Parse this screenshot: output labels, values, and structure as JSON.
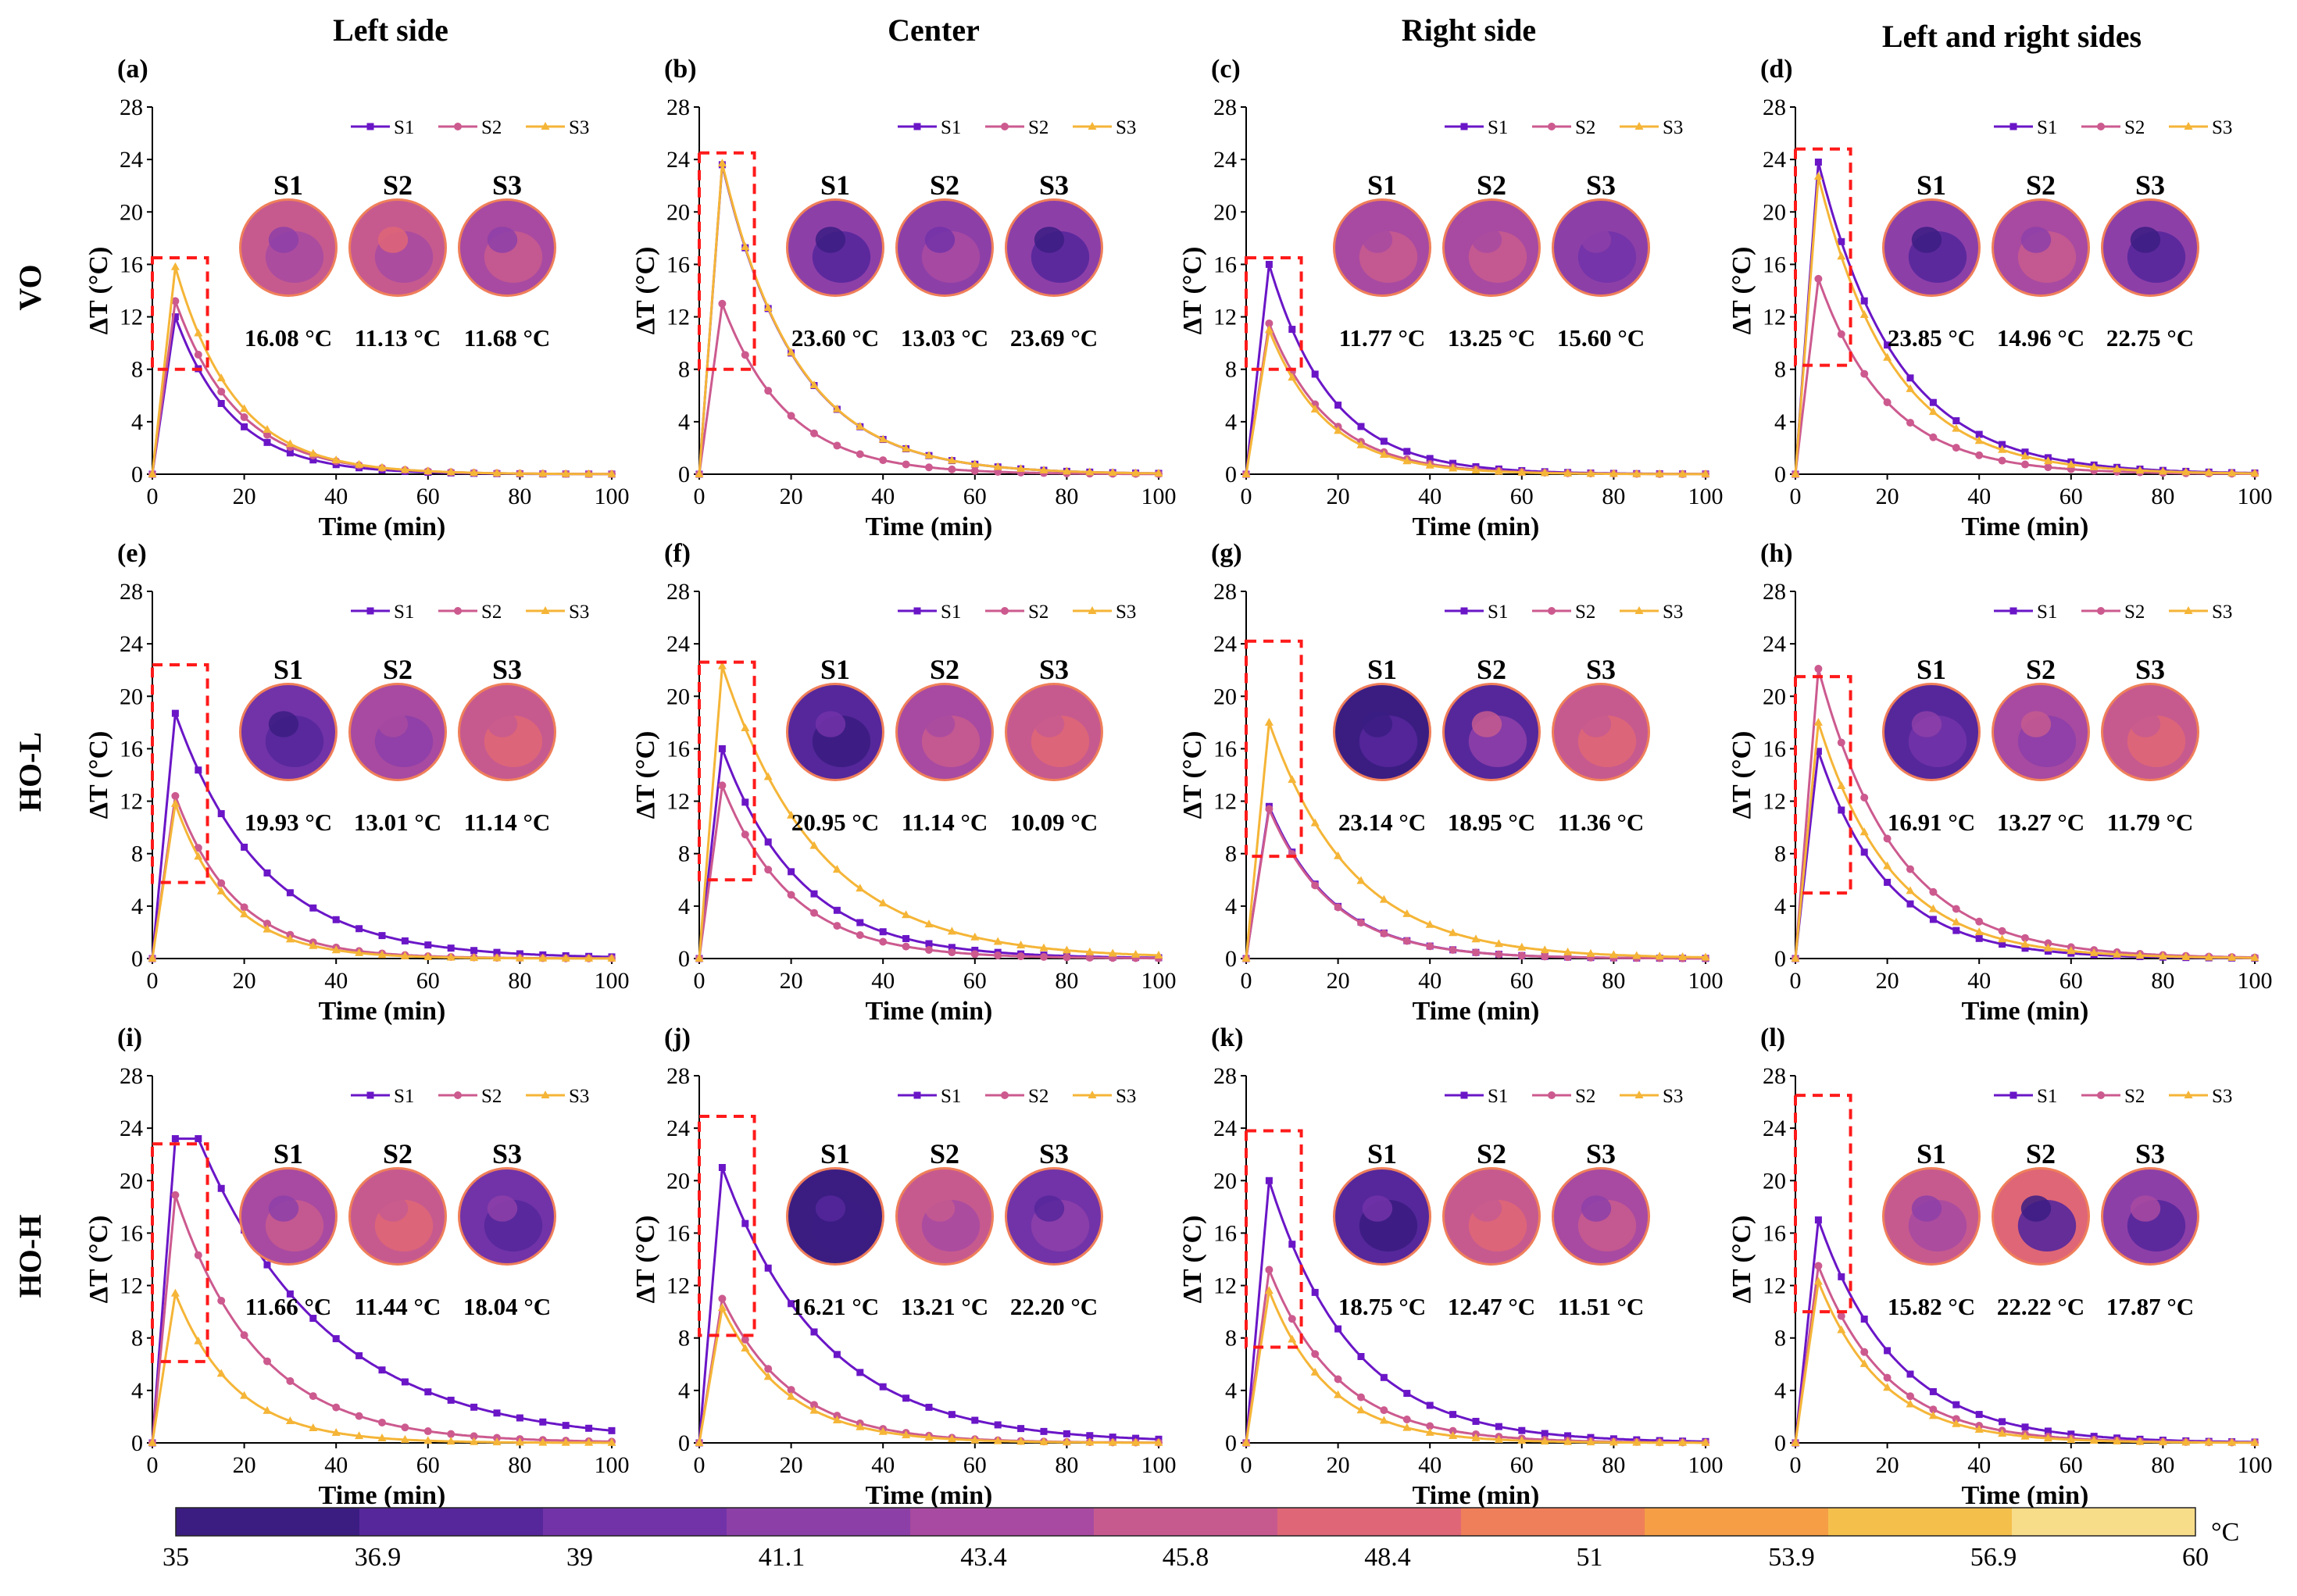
{
  "figure": {
    "column_titles": [
      "Left side",
      "Center",
      "Right side",
      "Left and right sides"
    ],
    "row_labels": [
      "VO",
      "HO-L",
      "HO-H"
    ],
    "legend": [
      "S1",
      "S2",
      "S3"
    ],
    "sample_labels": [
      "S1",
      "S2",
      "S3"
    ],
    "colors": {
      "S1": "#6a16c7",
      "S2": "#cc5a8f",
      "S3": "#f5b537",
      "highlight_box": "#ff1a1a"
    },
    "colorbar": {
      "ticks": [
        "35",
        "36.9",
        "39",
        "41.1",
        "43.4",
        "45.8",
        "48.4",
        "51",
        "53.9",
        "56.9",
        "60"
      ],
      "unit": "°C",
      "colors": [
        "#3b1d82",
        "#56279b",
        "#7233a8",
        "#8d3fa8",
        "#a84aa1",
        "#c65a8f",
        "#df6677",
        "#ef7f5a",
        "#f59e45",
        "#f5bf4c",
        "#f7dc8a"
      ]
    }
  },
  "chart_data": [
    {
      "id": "a",
      "type": "line",
      "title": "(a)",
      "xlabel": "Time (min)",
      "ylabel": "ΔT (°C)",
      "xlim": [
        0,
        100
      ],
      "ylim": [
        0,
        28
      ],
      "xticks": [
        "0",
        "20",
        "40",
        "60",
        "80",
        "100"
      ],
      "yticks": [
        "0",
        "4",
        "8",
        "12",
        "16",
        "20",
        "24",
        "28"
      ],
      "box": [
        8,
        16.5
      ],
      "series": [
        {
          "name": "S1",
          "peak": 12,
          "peak_at": 5,
          "tau": 12.5
        },
        {
          "name": "S2",
          "peak": 13.2,
          "peak_at": 5,
          "tau": 13.5
        },
        {
          "name": "S3",
          "peak": 15.8,
          "peak_at": 5,
          "tau": 13
        }
      ],
      "thermal_temps": [
        "16.08 °C",
        "11.13 °C",
        "11.68 °C"
      ],
      "thermal_levels": [
        [
          5,
          4,
          3
        ],
        [
          5,
          4,
          6
        ],
        [
          4,
          5,
          3
        ]
      ]
    },
    {
      "id": "b",
      "type": "line",
      "title": "(b)",
      "xlabel": "Time (min)",
      "ylabel": "ΔT (°C)",
      "xlim": [
        0,
        100
      ],
      "ylim": [
        0,
        28
      ],
      "xticks": [
        "0",
        "20",
        "40",
        "60",
        "80",
        "100"
      ],
      "yticks": [
        "0",
        "4",
        "8",
        "12",
        "16",
        "20",
        "24",
        "28"
      ],
      "box": [
        8,
        24.5
      ],
      "series": [
        {
          "name": "S1",
          "peak": 23.6,
          "peak_at": 5,
          "tau": 16
        },
        {
          "name": "S2",
          "peak": 13,
          "peak_at": 5,
          "tau": 14
        },
        {
          "name": "S3",
          "peak": 23.7,
          "peak_at": 5,
          "tau": 16
        }
      ],
      "thermal_temps": [
        "23.60 °C",
        "13.03 °C",
        "23.69 °C"
      ],
      "thermal_levels": [
        [
          3,
          1,
          0
        ],
        [
          3,
          4,
          2
        ],
        [
          3,
          1,
          0
        ]
      ]
    },
    {
      "id": "c",
      "type": "line",
      "title": "(c)",
      "xlabel": "Time (min)",
      "ylabel": "ΔT (°C)",
      "xlim": [
        0,
        100
      ],
      "ylim": [
        0,
        28
      ],
      "xticks": [
        "0",
        "20",
        "40",
        "60",
        "80",
        "100"
      ],
      "yticks": [
        "0",
        "4",
        "8",
        "12",
        "16",
        "20",
        "24",
        "28"
      ],
      "box": [
        8,
        16.5
      ],
      "series": [
        {
          "name": "S1",
          "peak": 16,
          "peak_at": 5,
          "tau": 13.5
        },
        {
          "name": "S2",
          "peak": 11.5,
          "peak_at": 5,
          "tau": 13
        },
        {
          "name": "S3",
          "peak": 11,
          "peak_at": 5,
          "tau": 12.5
        }
      ],
      "thermal_temps": [
        "11.77 °C",
        "13.25 °C",
        "15.60 °C"
      ],
      "thermal_levels": [
        [
          4,
          5,
          4
        ],
        [
          4,
          5,
          4
        ],
        [
          3,
          2,
          3
        ]
      ]
    },
    {
      "id": "d",
      "type": "line",
      "title": "(d)",
      "xlabel": "Time (min)",
      "ylabel": "ΔT (°C)",
      "xlim": [
        0,
        100
      ],
      "ylim": [
        0,
        28
      ],
      "xticks": [
        "0",
        "20",
        "40",
        "60",
        "80",
        "100"
      ],
      "yticks": [
        "0",
        "4",
        "8",
        "12",
        "16",
        "20",
        "24",
        "28"
      ],
      "box": [
        8.3,
        24.8
      ],
      "series": [
        {
          "name": "S1",
          "peak": 23.8,
          "peak_at": 5,
          "tau": 17
        },
        {
          "name": "S2",
          "peak": 14.9,
          "peak_at": 5,
          "tau": 15
        },
        {
          "name": "S3",
          "peak": 22.7,
          "peak_at": 5,
          "tau": 16
        }
      ],
      "thermal_temps": [
        "23.85 °C",
        "14.96 °C",
        "22.75 °C"
      ],
      "thermal_levels": [
        [
          3,
          1,
          0
        ],
        [
          4,
          5,
          3
        ],
        [
          3,
          1,
          0
        ]
      ]
    },
    {
      "id": "e",
      "type": "line",
      "title": "(e)",
      "xlabel": "Time (min)",
      "ylabel": "ΔT (°C)",
      "xlim": [
        0,
        100
      ],
      "ylim": [
        0,
        28
      ],
      "xticks": [
        "0",
        "20",
        "40",
        "60",
        "80",
        "100"
      ],
      "yticks": [
        "0",
        "4",
        "8",
        "12",
        "16",
        "20",
        "24",
        "28"
      ],
      "box": [
        5.8,
        22.4
      ],
      "series": [
        {
          "name": "S1",
          "peak": 18.7,
          "peak_at": 5,
          "tau": 19
        },
        {
          "name": "S2",
          "peak": 12.4,
          "peak_at": 5,
          "tau": 13
        },
        {
          "name": "S3",
          "peak": 11.8,
          "peak_at": 5,
          "tau": 12
        }
      ],
      "thermal_temps": [
        "19.93 °C",
        "13.01 °C",
        "11.14 °C"
      ],
      "thermal_levels": [
        [
          2,
          1,
          0
        ],
        [
          4,
          3,
          4
        ],
        [
          5,
          6,
          5
        ]
      ]
    },
    {
      "id": "f",
      "type": "line",
      "title": "(f)",
      "xlabel": "Time (min)",
      "ylabel": "ΔT (°C)",
      "xlim": [
        0,
        100
      ],
      "ylim": [
        0,
        28
      ],
      "xticks": [
        "0",
        "20",
        "40",
        "60",
        "80",
        "100"
      ],
      "yticks": [
        "0",
        "4",
        "8",
        "12",
        "16",
        "20",
        "24",
        "28"
      ],
      "box": [
        6,
        22.6
      ],
      "series": [
        {
          "name": "S1",
          "peak": 16,
          "peak_at": 5,
          "tau": 17
        },
        {
          "name": "S2",
          "peak": 13.2,
          "peak_at": 5,
          "tau": 15
        },
        {
          "name": "S3",
          "peak": 22.3,
          "peak_at": 5,
          "tau": 21
        }
      ],
      "thermal_temps": [
        "20.95 °C",
        "11.14 °C",
        "10.09 °C"
      ],
      "thermal_levels": [
        [
          1,
          0,
          2
        ],
        [
          4,
          5,
          4
        ],
        [
          5,
          6,
          5
        ]
      ]
    },
    {
      "id": "g",
      "type": "line",
      "title": "(g)",
      "xlabel": "Time (min)",
      "ylabel": "ΔT (°C)",
      "xlim": [
        0,
        100
      ],
      "ylim": [
        0,
        28
      ],
      "xticks": [
        "0",
        "20",
        "40",
        "60",
        "80",
        "100"
      ],
      "yticks": [
        "0",
        "4",
        "8",
        "12",
        "16",
        "20",
        "24",
        "28"
      ],
      "box": [
        7.8,
        24.2
      ],
      "series": [
        {
          "name": "S1",
          "peak": 11.6,
          "peak_at": 5,
          "tau": 14
        },
        {
          "name": "S2",
          "peak": 11.4,
          "peak_at": 5,
          "tau": 14
        },
        {
          "name": "S3",
          "peak": 18,
          "peak_at": 5,
          "tau": 18
        }
      ],
      "thermal_temps": [
        "23.14 °C",
        "18.95 °C",
        "11.36 °C"
      ],
      "thermal_levels": [
        [
          0,
          1,
          0
        ],
        [
          1,
          3,
          5
        ],
        [
          5,
          6,
          5
        ]
      ]
    },
    {
      "id": "h",
      "type": "line",
      "title": "(h)",
      "xlabel": "Time (min)",
      "ylabel": "ΔT (°C)",
      "xlim": [
        0,
        100
      ],
      "ylim": [
        0,
        28
      ],
      "xticks": [
        "0",
        "20",
        "40",
        "60",
        "80",
        "100"
      ],
      "yticks": [
        "0",
        "4",
        "8",
        "12",
        "16",
        "20",
        "24",
        "28"
      ],
      "box": [
        5,
        21.5
      ],
      "series": [
        {
          "name": "S1",
          "peak": 15.8,
          "peak_at": 5,
          "tau": 15
        },
        {
          "name": "S2",
          "peak": 22.1,
          "peak_at": 5,
          "tau": 17
        },
        {
          "name": "S3",
          "peak": 18,
          "peak_at": 5,
          "tau": 16
        }
      ],
      "thermal_temps": [
        "16.91 °C",
        "13.27 °C",
        "11.79 °C"
      ],
      "thermal_levels": [
        [
          1,
          2,
          3
        ],
        [
          4,
          3,
          5
        ],
        [
          5,
          6,
          5
        ]
      ]
    },
    {
      "id": "i",
      "type": "line",
      "title": "(i)",
      "xlabel": "Time (min)",
      "ylabel": "ΔT (°C)",
      "xlim": [
        0,
        100
      ],
      "ylim": [
        0,
        28
      ],
      "xticks": [
        "0",
        "20",
        "40",
        "60",
        "80",
        "100"
      ],
      "yticks": [
        "0",
        "4",
        "8",
        "12",
        "16",
        "20",
        "24",
        "28"
      ],
      "box": [
        6.2,
        22.8
      ],
      "series": [
        {
          "name": "S1",
          "peak": 23.2,
          "peak_at": 5,
          "plateau_to": 10,
          "tau": 28
        },
        {
          "name": "S2",
          "peak": 18.9,
          "peak_at": 5,
          "tau": 18
        },
        {
          "name": "S3",
          "peak": 11.4,
          "peak_at": 5,
          "tau": 13
        }
      ],
      "thermal_temps": [
        "11.66 °C",
        "11.44 °C",
        "18.04 °C"
      ],
      "thermal_levels": [
        [
          4,
          5,
          3
        ],
        [
          5,
          6,
          5
        ],
        [
          2,
          1,
          3
        ]
      ]
    },
    {
      "id": "j",
      "type": "line",
      "title": "(j)",
      "xlabel": "Time (min)",
      "ylabel": "ΔT (°C)",
      "xlim": [
        0,
        100
      ],
      "ylim": [
        0,
        28
      ],
      "xticks": [
        "0",
        "20",
        "40",
        "60",
        "80",
        "100"
      ],
      "yticks": [
        "0",
        "4",
        "8",
        "12",
        "16",
        "20",
        "24",
        "28"
      ],
      "box": [
        8.2,
        24.9
      ],
      "series": [
        {
          "name": "S1",
          "peak": 21,
          "peak_at": 5,
          "tau": 22
        },
        {
          "name": "S2",
          "peak": 11,
          "peak_at": 5,
          "tau": 15
        },
        {
          "name": "S3",
          "peak": 10.3,
          "peak_at": 5,
          "tau": 14
        }
      ],
      "thermal_temps": [
        "16.21 °C",
        "13.21 °C",
        "22.20 °C"
      ],
      "thermal_levels": [
        [
          0,
          0,
          1
        ],
        [
          5,
          4,
          5
        ],
        [
          2,
          3,
          1
        ]
      ]
    },
    {
      "id": "k",
      "type": "line",
      "title": "(k)",
      "xlabel": "Time (min)",
      "ylabel": "ΔT (°C)",
      "xlim": [
        0,
        100
      ],
      "ylim": [
        0,
        28
      ],
      "xticks": [
        "0",
        "20",
        "40",
        "60",
        "80",
        "100"
      ],
      "yticks": [
        "0",
        "4",
        "8",
        "12",
        "16",
        "20",
        "24",
        "28"
      ],
      "box": [
        7.3,
        23.8
      ],
      "series": [
        {
          "name": "S1",
          "peak": 20,
          "peak_at": 5,
          "tau": 18
        },
        {
          "name": "S2",
          "peak": 13.2,
          "peak_at": 5,
          "tau": 15
        },
        {
          "name": "S3",
          "peak": 11.6,
          "peak_at": 5,
          "tau": 13
        }
      ],
      "thermal_temps": [
        "18.75 °C",
        "12.47 °C",
        "11.51 °C"
      ],
      "thermal_levels": [
        [
          1,
          0,
          2
        ],
        [
          5,
          6,
          5
        ],
        [
          4,
          5,
          3
        ]
      ]
    },
    {
      "id": "l",
      "type": "line",
      "title": "(l)",
      "xlabel": "Time (min)",
      "ylabel": "ΔT (°C)",
      "xlim": [
        0,
        100
      ],
      "ylim": [
        0,
        28
      ],
      "xticks": [
        "0",
        "20",
        "40",
        "60",
        "80",
        "100"
      ],
      "yticks": [
        "0",
        "4",
        "8",
        "12",
        "16",
        "20",
        "24",
        "28"
      ],
      "box": [
        10,
        26.5
      ],
      "series": [
        {
          "name": "S1",
          "peak": 17,
          "peak_at": 5,
          "tau": 17
        },
        {
          "name": "S2",
          "peak": 13.5,
          "peak_at": 5,
          "tau": 15
        },
        {
          "name": "S3",
          "peak": 12.3,
          "peak_at": 5,
          "tau": 14
        }
      ],
      "thermal_temps": [
        "15.82 °C",
        "22.22 °C",
        "17.87 °C"
      ],
      "thermal_levels": [
        [
          5,
          4,
          3
        ],
        [
          6,
          1,
          0
        ],
        [
          3,
          1,
          4
        ]
      ]
    }
  ]
}
